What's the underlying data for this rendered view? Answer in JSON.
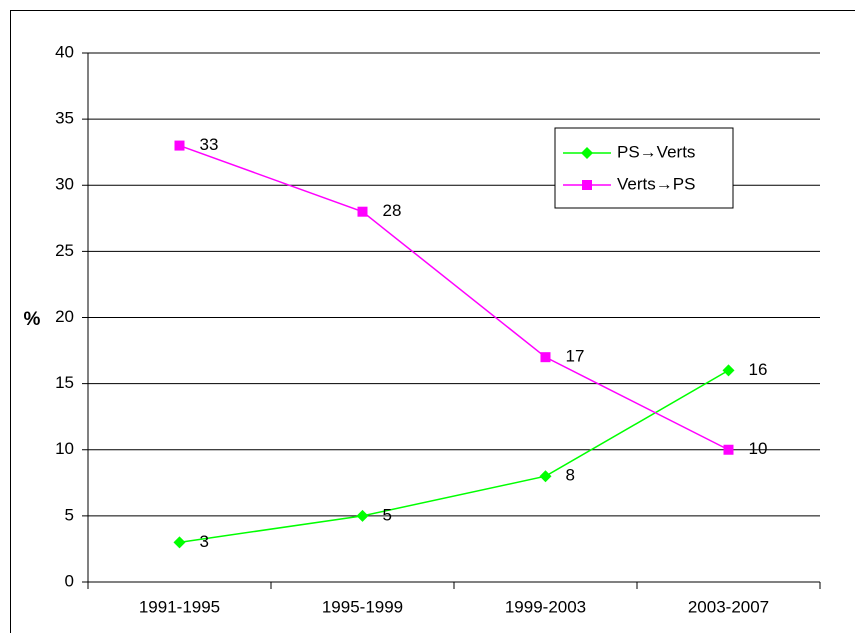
{
  "chart_data": {
    "type": "line",
    "y_label": "%",
    "categories": [
      "1991-1995",
      "1995-1999",
      "1999-2003",
      "2003-2007"
    ],
    "series": [
      {
        "name": "PS→Verts",
        "color": "#00ff00",
        "marker": "diamond",
        "values": [
          3,
          5,
          8,
          16
        ]
      },
      {
        "name": "Verts→PS",
        "color": "#ff00ff",
        "marker": "square",
        "values": [
          33,
          28,
          17,
          10
        ]
      }
    ],
    "ylim": [
      0,
      40
    ],
    "yticks": [
      0,
      5,
      10,
      15,
      20,
      25,
      30,
      35,
      40
    ],
    "grid": true,
    "legend": "upper right"
  }
}
